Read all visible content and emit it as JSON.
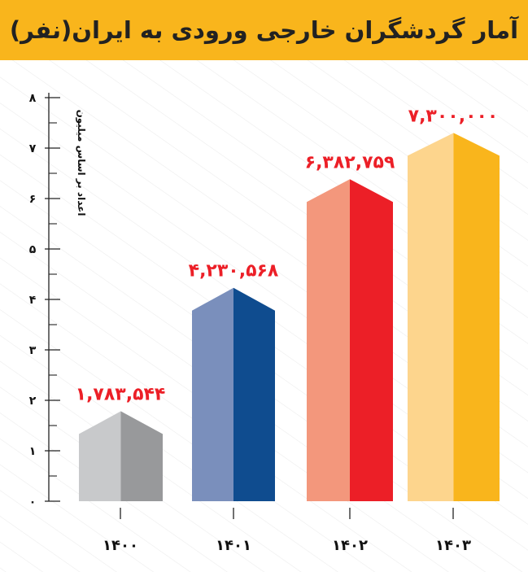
{
  "chart_data": {
    "type": "bar",
    "title": "آمار گردشگران خارجی ورودی به ایران(نفر)",
    "ylabel": "اعداد بر اساس میلیون",
    "xlabel": "",
    "ylim": [
      0,
      8
    ],
    "yticks": [
      "۰",
      "۱",
      "۲",
      "۳",
      "۴",
      "۵",
      "۶",
      "۷",
      "۸"
    ],
    "categories": [
      "۱۴۰۰",
      "۱۴۰۱",
      "۱۴۰۲",
      "۱۴۰۳"
    ],
    "values": [
      1783544,
      4230568,
      6382759,
      7300000
    ],
    "data_labels": [
      "۱,۷۸۳,۵۴۴",
      "۴,۲۳۰,۵۶۸",
      "۶,۳۸۲,۷۵۹",
      "۷,۳۰۰,۰۰۰"
    ],
    "colors": [
      {
        "light": "#c8c9cb",
        "dark": "#98999b"
      },
      {
        "light": "#7a8fbc",
        "dark": "#0f4c8f"
      },
      {
        "light": "#f3977c",
        "dark": "#ec1f27"
      },
      {
        "light": "#fdd58d",
        "dark": "#f9b51c"
      }
    ],
    "label_color": "#ec1f27",
    "grid": true
  }
}
